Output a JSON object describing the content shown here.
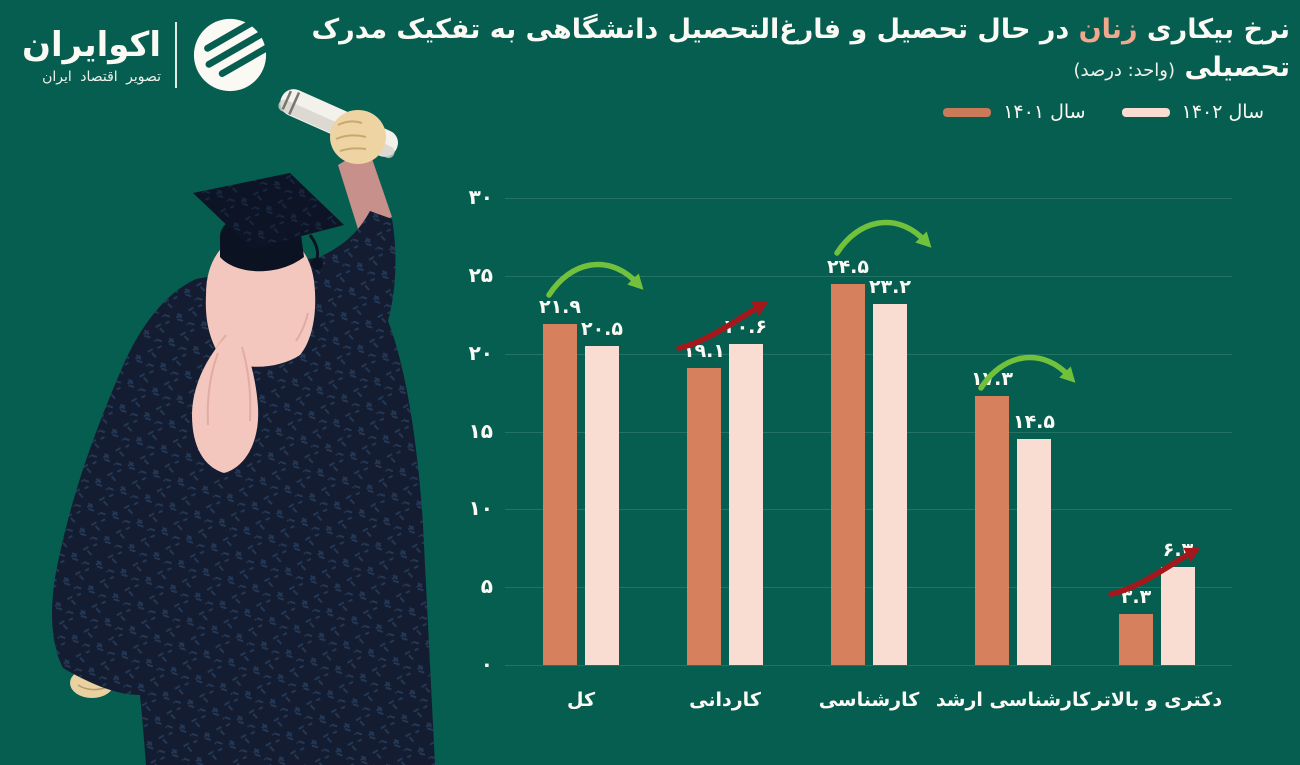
{
  "theme": {
    "background": "#065E50",
    "text": "#FBF9F3",
    "grid": "rgba(255,255,255,0.12)"
  },
  "logo": {
    "name": "اکوایران",
    "tagline": "تصویر اقتصاد ایران"
  },
  "title": {
    "pre": "نرخ بیکاری",
    "highlight": "زنان",
    "highlight_color": "#F1A88C",
    "post": "در حال تحصیل و فارغ‌التحصیل دانشگاهی به تفکیک مدرک",
    "line2": "تحصیلی",
    "unit": "(واحد: درصد)"
  },
  "legend": {
    "items": [
      {
        "label": "سال ۱۴۰۲",
        "color": "#F9DDD3"
      },
      {
        "label": "سال ۱۴۰۱",
        "color": "#C97A59"
      }
    ]
  },
  "chart_data": {
    "type": "bar",
    "title": "نرخ بیکاری زنان در حال تحصیل و فارغ‌التحصیل دانشگاهی به تفکیک مدرک تحصیلی",
    "unit": "درصد",
    "ylim": [
      0,
      30
    ],
    "grid": true,
    "legend_position": "top-right",
    "yticks": [
      30,
      25,
      20,
      15,
      10,
      5,
      0
    ],
    "ytick_labels": [
      "۳۰",
      "۲۵",
      "۲۰",
      "۱۵",
      "۱۰",
      "۵",
      "۰"
    ],
    "categories": [
      "کل",
      "کاردانی",
      "کارشناسی",
      "کارشناسی ارشد",
      "دکتری و بالاتر"
    ],
    "series": [
      {
        "name": "سال ۱۴۰۱",
        "year": "1401",
        "color": "#D6805D",
        "values": [
          21.9,
          19.1,
          24.5,
          17.3,
          3.3
        ],
        "labels": [
          "۲۱.۹",
          "۱۹.۱",
          "۲۴.۵",
          "۱۷.۳",
          "۳.۳"
        ]
      },
      {
        "name": "سال ۱۴۰۲",
        "year": "1402",
        "color": "#F9DDD3",
        "values": [
          20.5,
          20.6,
          23.2,
          14.5,
          6.3
        ],
        "labels": [
          "۲۰.۵",
          "۲۰.۶",
          "۲۳.۲",
          "۱۴.۵",
          "۶.۳"
        ]
      }
    ],
    "trends": [
      {
        "direction": "down",
        "color": "#72C13C"
      },
      {
        "direction": "up",
        "color": "#A5171B"
      },
      {
        "direction": "down",
        "color": "#72C13C"
      },
      {
        "direction": "down",
        "color": "#72C13C"
      },
      {
        "direction": "up",
        "color": "#A5171B"
      }
    ]
  },
  "illustration": {
    "name": "graduate-woman-holding-diploma"
  }
}
